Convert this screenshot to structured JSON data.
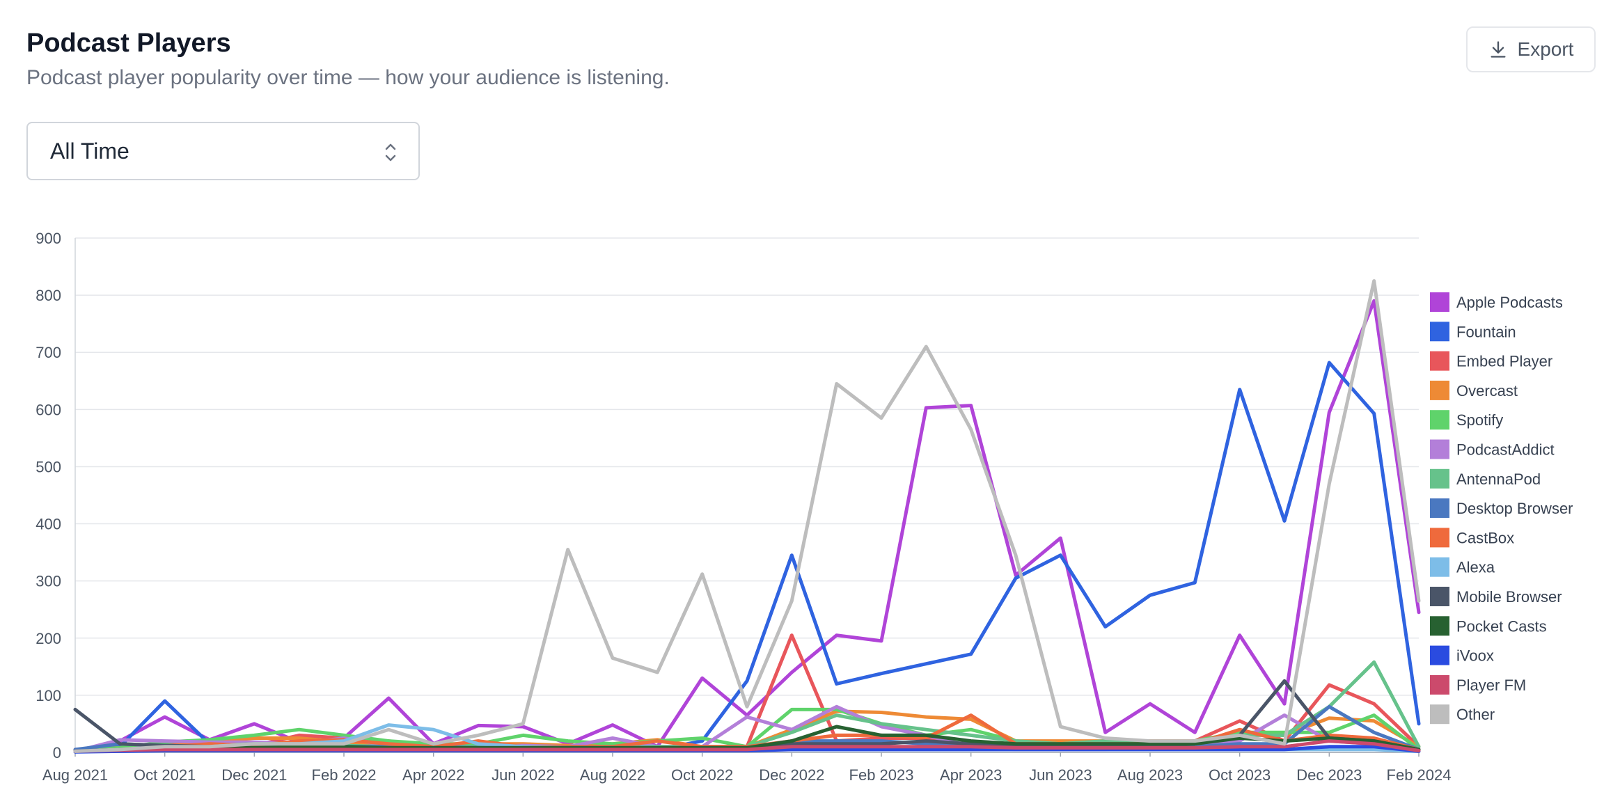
{
  "header": {
    "title": "Podcast Players",
    "subtitle": "Podcast player popularity over time — how your audience is listening."
  },
  "toolbar": {
    "export_label": "Export",
    "export_icon": "download-icon"
  },
  "filter": {
    "selected": "All Time",
    "icon": "chevron-up-down-icon"
  },
  "chart_data": {
    "type": "line",
    "title": "",
    "xlabel": "",
    "ylabel": "",
    "ylim": [
      0,
      900
    ],
    "yticks": [
      0,
      100,
      200,
      300,
      400,
      500,
      600,
      700,
      800,
      900
    ],
    "grid": true,
    "legend": "right",
    "x": [
      "Aug 2021",
      "Sep 2021",
      "Oct 2021",
      "Nov 2021",
      "Dec 2021",
      "Jan 2022",
      "Feb 2022",
      "Mar 2022",
      "Apr 2022",
      "May 2022",
      "Jun 2022",
      "Jul 2022",
      "Aug 2022",
      "Sep 2022",
      "Oct 2022",
      "Nov 2022",
      "Dec 2022",
      "Jan 2023",
      "Feb 2023",
      "Mar 2023",
      "Apr 2023",
      "May 2023",
      "Jun 2023",
      "Jul 2023",
      "Aug 2023",
      "Sep 2023",
      "Oct 2023",
      "Nov 2023",
      "Dec 2023",
      "Jan 2024",
      "Feb 2024"
    ],
    "xtick_labels": [
      "Aug 2021",
      "Oct 2021",
      "Dec 2021",
      "Feb 2022",
      "Apr 2022",
      "Jun 2022",
      "Aug 2022",
      "Oct 2022",
      "Dec 2022",
      "Feb 2023",
      "Apr 2023",
      "Jun 2023",
      "Aug 2023",
      "Oct 2023",
      "Dec 2023",
      "Feb 2024"
    ],
    "series": [
      {
        "name": "Apple Podcasts",
        "color": "#b044d8",
        "values": [
          2,
          20,
          62,
          22,
          50,
          18,
          25,
          95,
          15,
          47,
          45,
          15,
          48,
          10,
          130,
          65,
          140,
          205,
          195,
          603,
          607,
          310,
          375,
          35,
          85,
          35,
          205,
          85,
          595,
          790,
          245
        ]
      },
      {
        "name": "Fountain",
        "color": "#2f63e0",
        "values": [
          2,
          10,
          90,
          15,
          12,
          10,
          12,
          10,
          8,
          8,
          8,
          5,
          5,
          5,
          20,
          125,
          345,
          120,
          138,
          155,
          172,
          305,
          345,
          220,
          275,
          297,
          635,
          405,
          682,
          593,
          50
        ]
      },
      {
        "name": "Embed Player",
        "color": "#e8565b",
        "values": [
          5,
          8,
          12,
          18,
          12,
          30,
          25,
          20,
          10,
          10,
          10,
          10,
          10,
          10,
          10,
          10,
          205,
          20,
          25,
          25,
          10,
          5,
          5,
          5,
          10,
          20,
          55,
          20,
          118,
          85,
          10
        ]
      },
      {
        "name": "Overcast",
        "color": "#ee8a35",
        "values": [
          2,
          5,
          10,
          18,
          25,
          25,
          18,
          15,
          12,
          15,
          15,
          12,
          15,
          22,
          10,
          10,
          40,
          72,
          70,
          62,
          58,
          20,
          20,
          20,
          20,
          20,
          35,
          30,
          60,
          55,
          10
        ]
      },
      {
        "name": "Spotify",
        "color": "#5fd36b",
        "values": [
          3,
          8,
          18,
          22,
          30,
          40,
          30,
          20,
          15,
          15,
          30,
          20,
          15,
          20,
          25,
          10,
          75,
          75,
          50,
          30,
          40,
          20,
          15,
          20,
          15,
          20,
          35,
          35,
          35,
          65,
          5
        ]
      },
      {
        "name": "PodcastAddict",
        "color": "#b37fd9",
        "values": [
          2,
          22,
          20,
          18,
          18,
          15,
          25,
          12,
          10,
          10,
          12,
          10,
          25,
          10,
          10,
          62,
          40,
          80,
          45,
          30,
          10,
          5,
          10,
          15,
          15,
          15,
          20,
          65,
          20,
          15,
          5
        ]
      },
      {
        "name": "AntennaPod",
        "color": "#66c28b",
        "values": [
          2,
          5,
          10,
          12,
          15,
          15,
          12,
          10,
          10,
          10,
          10,
          8,
          8,
          10,
          10,
          10,
          35,
          65,
          50,
          40,
          30,
          20,
          15,
          20,
          15,
          20,
          30,
          30,
          80,
          158,
          10
        ]
      },
      {
        "name": "Desktop Browser",
        "color": "#4a78c0",
        "values": [
          5,
          15,
          12,
          10,
          10,
          10,
          10,
          10,
          10,
          8,
          8,
          8,
          8,
          8,
          8,
          8,
          20,
          20,
          20,
          15,
          12,
          10,
          10,
          10,
          10,
          10,
          15,
          15,
          80,
          35,
          5
        ]
      },
      {
        "name": "CastBox",
        "color": "#ef6a3c",
        "values": [
          2,
          5,
          10,
          15,
          12,
          20,
          22,
          15,
          10,
          20,
          10,
          10,
          10,
          20,
          10,
          10,
          20,
          30,
          30,
          25,
          65,
          15,
          15,
          15,
          15,
          15,
          40,
          20,
          30,
          25,
          5
        ]
      },
      {
        "name": "Alexa",
        "color": "#7dbde8",
        "values": [
          2,
          5,
          10,
          10,
          15,
          15,
          20,
          48,
          40,
          15,
          10,
          8,
          8,
          8,
          5,
          5,
          5,
          5,
          5,
          5,
          5,
          5,
          5,
          5,
          5,
          5,
          5,
          5,
          5,
          5,
          2
        ]
      },
      {
        "name": "Mobile Browser",
        "color": "#4a5568",
        "values": [
          75,
          15,
          12,
          10,
          8,
          8,
          8,
          8,
          8,
          8,
          8,
          8,
          8,
          8,
          8,
          8,
          15,
          15,
          15,
          20,
          15,
          10,
          10,
          10,
          10,
          15,
          30,
          125,
          25,
          20,
          5
        ]
      },
      {
        "name": "Pocket Casts",
        "color": "#276131",
        "values": [
          2,
          5,
          8,
          8,
          8,
          10,
          10,
          8,
          8,
          8,
          8,
          8,
          8,
          8,
          8,
          8,
          20,
          45,
          30,
          30,
          20,
          15,
          15,
          15,
          15,
          15,
          25,
          20,
          25,
          20,
          5
        ]
      },
      {
        "name": "iVoox",
        "color": "#2a4be0",
        "values": [
          1,
          2,
          3,
          3,
          3,
          3,
          3,
          3,
          3,
          3,
          3,
          3,
          3,
          3,
          3,
          3,
          5,
          5,
          5,
          5,
          5,
          5,
          5,
          5,
          5,
          5,
          5,
          5,
          10,
          10,
          2
        ]
      },
      {
        "name": "Player FM",
        "color": "#cc4a6c",
        "values": [
          2,
          4,
          5,
          5,
          5,
          5,
          5,
          5,
          5,
          5,
          5,
          5,
          5,
          5,
          5,
          5,
          10,
          10,
          10,
          10,
          10,
          8,
          8,
          8,
          8,
          8,
          10,
          10,
          20,
          15,
          3
        ]
      },
      {
        "name": "Other",
        "color": "#bdbdbd",
        "values": [
          2,
          5,
          10,
          10,
          15,
          15,
          15,
          40,
          15,
          30,
          50,
          355,
          165,
          140,
          312,
          80,
          265,
          645,
          585,
          710,
          565,
          345,
          45,
          25,
          20,
          20,
          30,
          15,
          470,
          825,
          265
        ]
      }
    ]
  }
}
